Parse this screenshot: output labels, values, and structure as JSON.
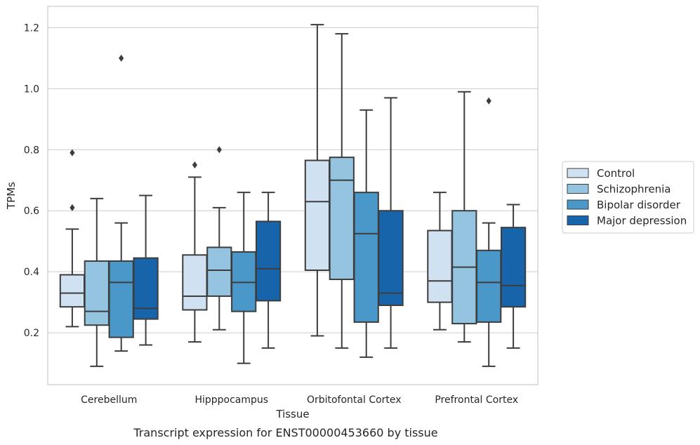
{
  "chart_data": {
    "type": "box",
    "title": "",
    "caption": "Transcript expression for ENST00000453660 by tissue",
    "xlabel": "Tissue",
    "ylabel": "TPMs",
    "categories": [
      "Cerebellum",
      "Hipppocampus",
      "Orbitofontal Cortex",
      "Prefrontal Cortex"
    ],
    "ylim": [
      0.03,
      1.27
    ],
    "yticks": [
      0.2,
      0.4,
      0.6,
      0.8,
      1.0,
      1.2
    ],
    "ytick_labels": [
      "0.2",
      "0.4",
      "0.6",
      "0.8",
      "1.0",
      "1.2"
    ],
    "grid": "horizontal",
    "legend_position": "right",
    "series": [
      {
        "name": "Control",
        "color": "#d0e1f2",
        "boxes": [
          {
            "whislo": 0.22,
            "q1": 0.285,
            "med": 0.33,
            "q3": 0.39,
            "whishi": 0.54,
            "fliers": [
              0.61,
              0.79
            ]
          },
          {
            "whislo": 0.17,
            "q1": 0.275,
            "med": 0.32,
            "q3": 0.455,
            "whishi": 0.71,
            "fliers": [
              0.75
            ]
          },
          {
            "whislo": 0.19,
            "q1": 0.405,
            "med": 0.63,
            "q3": 0.765,
            "whishi": 1.21,
            "fliers": []
          },
          {
            "whislo": 0.21,
            "q1": 0.3,
            "med": 0.37,
            "q3": 0.535,
            "whishi": 0.66,
            "fliers": []
          }
        ]
      },
      {
        "name": "Schizophrenia",
        "color": "#94c4df",
        "boxes": [
          {
            "whislo": 0.09,
            "q1": 0.225,
            "med": 0.27,
            "q3": 0.435,
            "whishi": 0.64,
            "fliers": []
          },
          {
            "whislo": 0.21,
            "q1": 0.32,
            "med": 0.405,
            "q3": 0.48,
            "whishi": 0.61,
            "fliers": [
              0.8
            ]
          },
          {
            "whislo": 0.15,
            "q1": 0.375,
            "med": 0.7,
            "q3": 0.775,
            "whishi": 1.18,
            "fliers": []
          },
          {
            "whislo": 0.17,
            "q1": 0.23,
            "med": 0.415,
            "q3": 0.6,
            "whishi": 0.99,
            "fliers": []
          }
        ]
      },
      {
        "name": "Bipolar disorder",
        "color": "#4a98c9",
        "boxes": [
          {
            "whislo": 0.14,
            "q1": 0.185,
            "med": 0.365,
            "q3": 0.435,
            "whishi": 0.56,
            "fliers": [
              1.1
            ]
          },
          {
            "whislo": 0.1,
            "q1": 0.27,
            "med": 0.365,
            "q3": 0.465,
            "whishi": 0.66,
            "fliers": []
          },
          {
            "whislo": 0.12,
            "q1": 0.235,
            "med": 0.525,
            "q3": 0.66,
            "whishi": 0.93,
            "fliers": []
          },
          {
            "whislo": 0.09,
            "q1": 0.235,
            "med": 0.365,
            "q3": 0.47,
            "whishi": 0.56,
            "fliers": [
              0.96
            ]
          }
        ]
      },
      {
        "name": "Major depression",
        "color": "#1764ab",
        "boxes": [
          {
            "whislo": 0.16,
            "q1": 0.245,
            "med": 0.28,
            "q3": 0.445,
            "whishi": 0.65,
            "fliers": []
          },
          {
            "whislo": 0.15,
            "q1": 0.305,
            "med": 0.41,
            "q3": 0.565,
            "whishi": 0.66,
            "fliers": []
          },
          {
            "whislo": 0.15,
            "q1": 0.29,
            "med": 0.33,
            "q3": 0.6,
            "whishi": 0.97,
            "fliers": []
          },
          {
            "whislo": 0.15,
            "q1": 0.285,
            "med": 0.355,
            "q3": 0.545,
            "whishi": 0.62,
            "fliers": []
          }
        ]
      }
    ]
  }
}
